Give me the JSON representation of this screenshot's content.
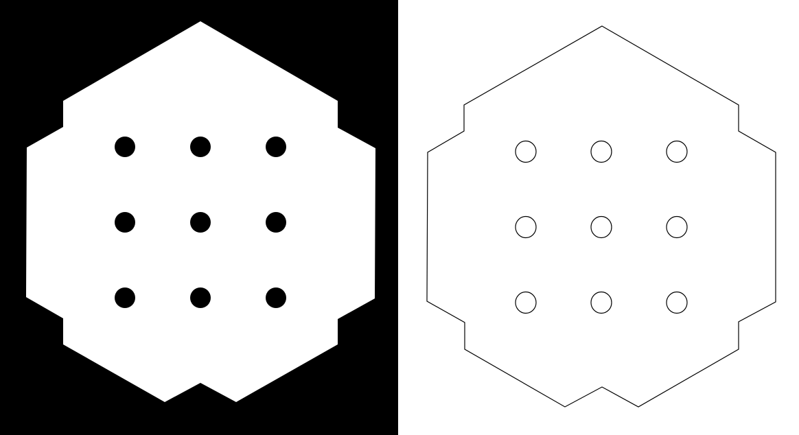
{
  "colors": {
    "mask_background": "#000000",
    "mask_shape": "#ffffff",
    "outline_background": "#ffffff",
    "outline_stroke": "#000000"
  },
  "grid": {
    "rows": 3,
    "columns": 3
  }
}
